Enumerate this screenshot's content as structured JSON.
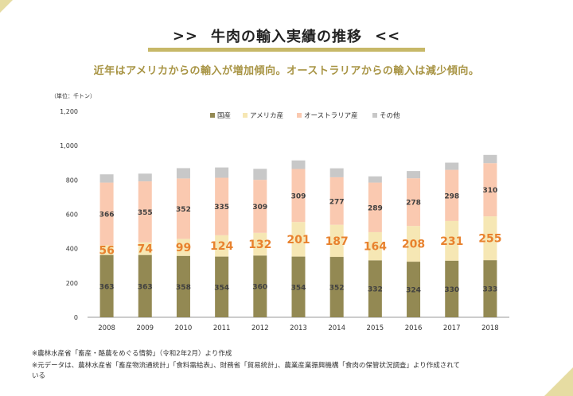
{
  "header": {
    "title": "牛肉の輸入実績の推移",
    "arrow_left": ">>",
    "arrow_right": "<<",
    "subtitle": "近年はアメリカからの輸入が増加傾向。オーストラリアからの輸入は減少傾向。"
  },
  "notes": [
    "※農林水産省「畜産・酪農をめぐる情勢」（令和2年2月）より作成",
    "※元データは、農林水産省「畜産物流通統計」「食料需給表」、財務省「貿易統計」、農業産業振興機構「食肉の保管状況調査」より作成されて",
    "いる"
  ],
  "chart_data": {
    "type": "bar",
    "stacked": true,
    "unit_label": "（単位：千トン）",
    "categories": [
      "2008",
      "2009",
      "2010",
      "2011",
      "2012",
      "2013",
      "2014",
      "2015",
      "2016",
      "2017",
      "2018"
    ],
    "series": [
      {
        "name": "国産",
        "color": "#938953",
        "label_color": "#404040",
        "values": [
          363,
          363,
          358,
          354,
          360,
          354,
          352,
          332,
          324,
          330,
          333
        ]
      },
      {
        "name": "アメリカ産",
        "color": "#f6e7b4",
        "label_color": "#e8822e",
        "values": [
          56,
          74,
          99,
          124,
          132,
          201,
          187,
          164,
          208,
          231,
          255
        ]
      },
      {
        "name": "オーストラリア産",
        "color": "#fac9b0",
        "label_color": "#404040",
        "values": [
          366,
          355,
          352,
          335,
          309,
          309,
          277,
          289,
          278,
          298,
          310
        ]
      },
      {
        "name": "その他",
        "color": "#c8c8c8",
        "label_color": "",
        "values": [
          48,
          45,
          60,
          60,
          64,
          50,
          52,
          36,
          42,
          42,
          48
        ]
      }
    ],
    "ylim": [
      0,
      1200
    ],
    "yticks": [
      "0",
      "200",
      "400",
      "600",
      "800",
      "1,000",
      "1,200"
    ],
    "legend": "top",
    "grid": false
  }
}
